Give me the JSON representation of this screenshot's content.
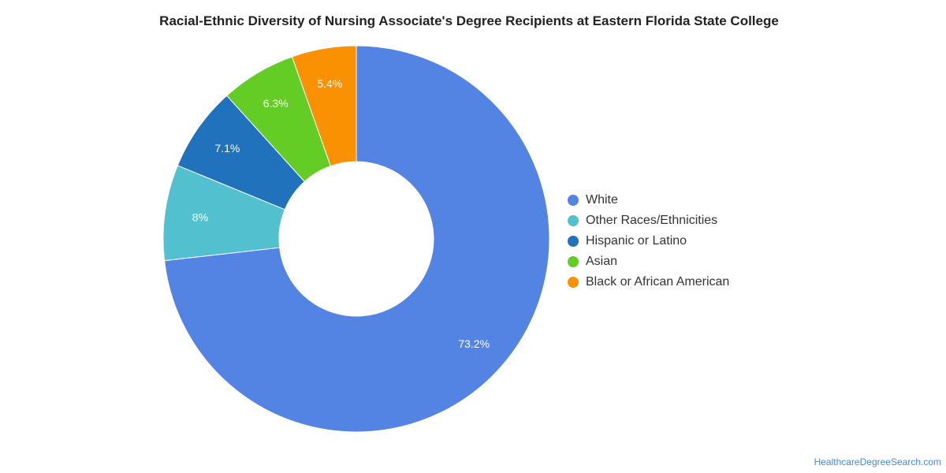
{
  "chart_data": {
    "type": "pie",
    "title": "Racial-Ethnic Diversity of Nursing Associate's Degree Recipients at Eastern Florida State College",
    "donut": true,
    "legend_position": "right",
    "slices": [
      {
        "label": "White",
        "value": 73.2,
        "display": "73.2%",
        "color": "#5484e3"
      },
      {
        "label": "Other Races/Ethnicities",
        "value": 8.0,
        "display": "8%",
        "color": "#52c0cf"
      },
      {
        "label": "Hispanic or Latino",
        "value": 7.1,
        "display": "7.1%",
        "color": "#1f72bb"
      },
      {
        "label": "Asian",
        "value": 6.3,
        "display": "6.3%",
        "color": "#63cc25"
      },
      {
        "label": "Black or African American",
        "value": 5.4,
        "display": "5.4%",
        "color": "#f99103"
      }
    ]
  },
  "footer": {
    "credit": "HealthcareDegreeSearch.com"
  }
}
